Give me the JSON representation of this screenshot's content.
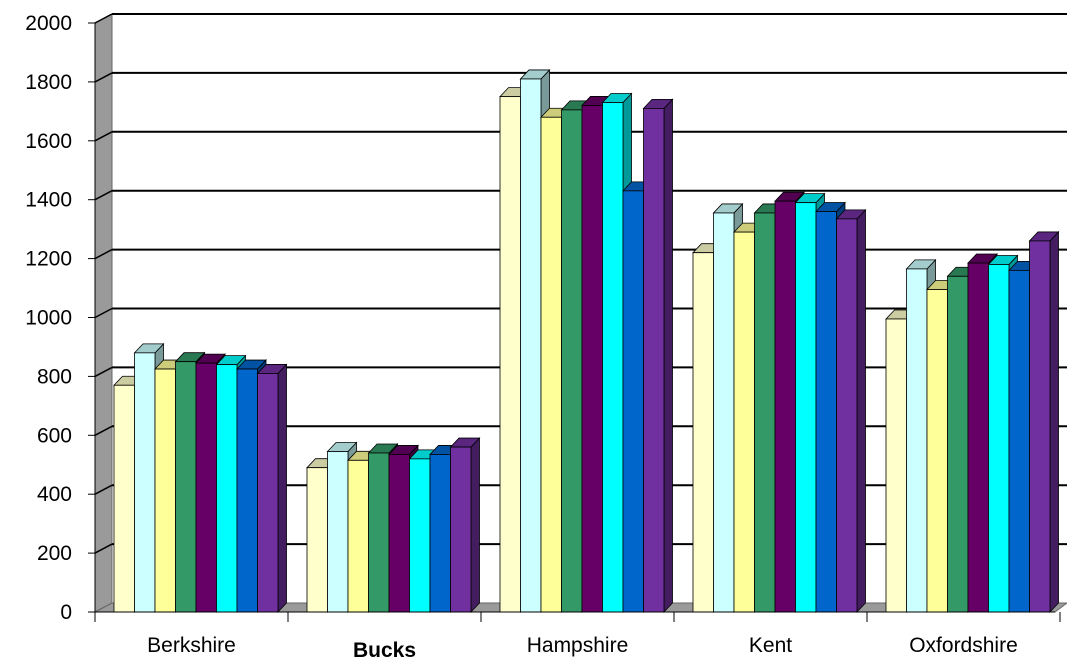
{
  "chart_data": {
    "type": "bar",
    "style": "3d-clustered-column",
    "categories": [
      "Berkshire",
      "Bucks",
      "Hampshire",
      "Kent",
      "Oxfordshire"
    ],
    "highlighted_category": "Bucks",
    "series": [
      {
        "color": "#FFFFCC",
        "values": [
          770,
          490,
          1750,
          1220,
          995
        ]
      },
      {
        "color": "#CCFFFF",
        "values": [
          880,
          545,
          1810,
          1355,
          1165
        ]
      },
      {
        "color": "#FFFF99",
        "values": [
          825,
          515,
          1680,
          1290,
          1095
        ]
      },
      {
        "color": "#339966",
        "values": [
          850,
          540,
          1705,
          1355,
          1140
        ]
      },
      {
        "color": "#660066",
        "values": [
          845,
          535,
          1720,
          1395,
          1185
        ]
      },
      {
        "color": "#00FFFF",
        "values": [
          840,
          520,
          1730,
          1390,
          1180
        ]
      },
      {
        "color": "#0066CC",
        "values": [
          825,
          535,
          1430,
          1360,
          1160
        ]
      },
      {
        "color": "#7030A0",
        "values": [
          810,
          560,
          1710,
          1335,
          1260
        ]
      }
    ],
    "ylim": [
      0,
      2000
    ],
    "yticks": [
      "0",
      "200",
      "400",
      "600",
      "800",
      "1000",
      "1200",
      "1400",
      "1600",
      "1800",
      "2000"
    ],
    "grid": true,
    "legend": "none"
  }
}
